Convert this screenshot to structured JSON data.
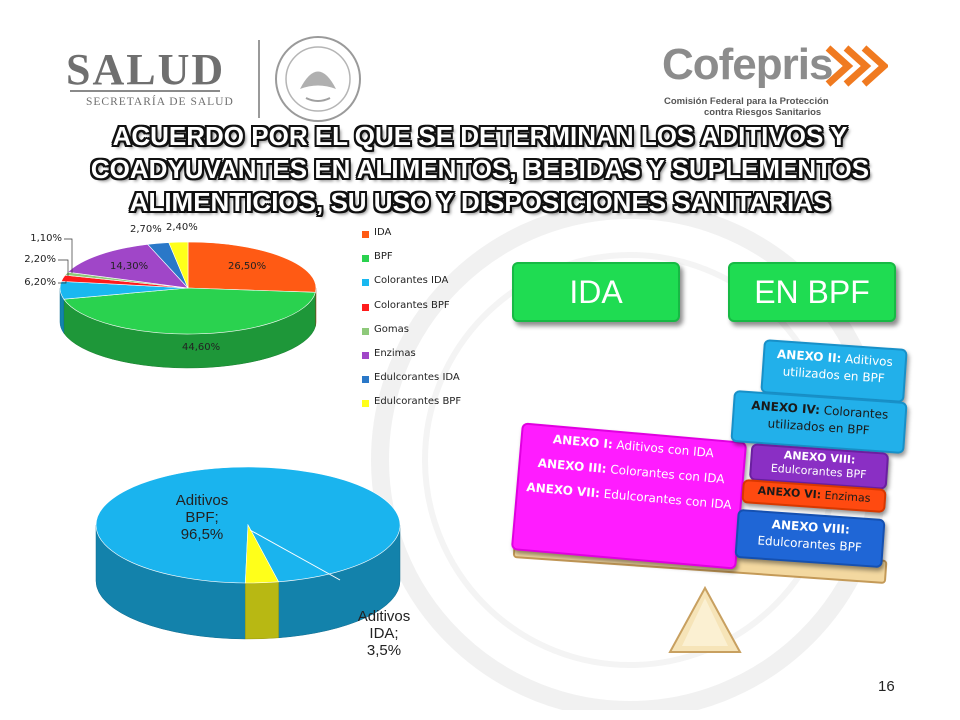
{
  "header": {
    "salud_logo": "SALUD",
    "salud_sub": "SECRETARÍA DE SALUD",
    "cofepris_logo": "Cofepris",
    "cofepris_sub_line1": "Comisión Federal para la Protección",
    "cofepris_sub_line2": "contra Riesgos Sanitarios"
  },
  "title": "ACUERDO POR EL QUE SE DETERMINAN LOS ADITIVOS Y COADYUVANTES EN ALIMENTOS, BEBIDAS Y SUPLEMENTOS ALIMENTICIOS, SU USO Y DISPOSICIONES SANITARIAS",
  "chart_data": [
    {
      "type": "pie",
      "style": "3d",
      "categories": [
        "IDA",
        "BPF",
        "Colorantes IDA",
        "Colorantes BPF",
        "Gomas",
        "Enzimas",
        "Edulcorantes IDA",
        "Edulcorantes BPF"
      ],
      "values": [
        26.5,
        44.6,
        6.2,
        2.2,
        1.1,
        14.3,
        2.7,
        2.4
      ],
      "value_labels": [
        "26,50%",
        "44,60%",
        "6,20%",
        "2,20%",
        "1,10%",
        "14,30%",
        "2,70%",
        "2,40%"
      ],
      "colors": [
        "#ff5a14",
        "#2ad24f",
        "#19b8f0",
        "#ff1b1b",
        "#8ec97a",
        "#a046c8",
        "#2a78c8",
        "#ffff1a"
      ],
      "legend_position": "right"
    },
    {
      "type": "pie",
      "style": "3d",
      "categories": [
        "Aditivos BPF",
        "Aditivos IDA"
      ],
      "values": [
        96.5,
        3.5
      ],
      "data_labels": [
        [
          "Aditivos",
          "BPF;",
          "96,5%"
        ],
        [
          "Aditivos",
          "IDA;",
          "3,5%"
        ]
      ],
      "colors": [
        "#1ab4ee",
        "#ffff1a"
      ]
    }
  ],
  "scale": {
    "left_header": "IDA",
    "right_header": "EN BPF",
    "left_block": [
      {
        "b": "ANEXO I:",
        "t": " Aditivos con IDA"
      },
      {
        "b": "ANEXO III:",
        "t": " Colorantes con IDA"
      },
      {
        "b": "ANEXO VII:",
        "t": " Edulcorantes con IDA"
      }
    ],
    "right_tags": [
      {
        "b": "ANEXO II:",
        "t": " Aditivos utilizados en BPF"
      },
      {
        "b": "ANEXO IV:",
        "t": " Colorantes utilizados en BPF"
      },
      {
        "b": "ANEXO VIII:",
        "t": " Edulcorantes BPF"
      },
      {
        "b": "ANEXO VI:",
        "t": " Enzimas"
      },
      {
        "b": "ANEXO VIII:",
        "t": " Edulcorantes BPF"
      }
    ],
    "colors": {
      "header_green": "#1fdc52",
      "magenta": "#ff1cff",
      "cyan": "#22b0ea",
      "purple": "#8a2fc4",
      "orange": "#ff4a10",
      "blue": "#1f66d6",
      "beam": "#f3d8a0"
    }
  },
  "page_number": "16"
}
